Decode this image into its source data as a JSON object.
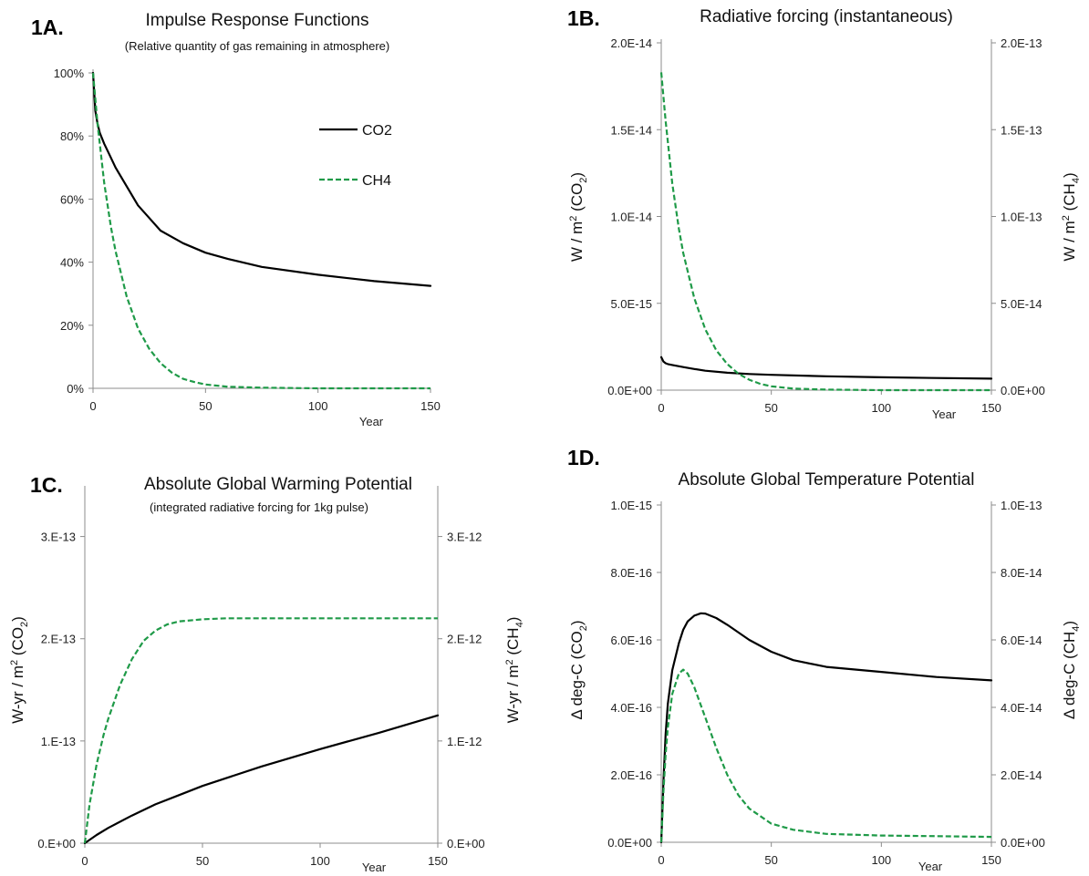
{
  "colors": {
    "co2": "#000000",
    "ch4": "#1f9a48",
    "axis": "#8c8c8c"
  },
  "chart_data": [
    {
      "id": "1A",
      "type": "line",
      "panel_label": "1A.",
      "title": "Impulse Response Functions",
      "subtitle": "(Relative quantity of gas remaining in atmosphere)",
      "xlabel": "Year",
      "xlim": [
        0,
        150
      ],
      "x_ticks": [
        0,
        50,
        100,
        150
      ],
      "y_left_lim": [
        0,
        100
      ],
      "y_left_ticks": [
        "0%",
        "20%",
        "40%",
        "60%",
        "80%",
        "100%"
      ],
      "legend": {
        "placement": "top-right",
        "entries": [
          "CO2",
          "CH4"
        ]
      },
      "series": [
        {
          "name": "CO2",
          "axis": "left",
          "style": "solid",
          "x": [
            0,
            1,
            2,
            3,
            5,
            7,
            10,
            15,
            20,
            25,
            30,
            40,
            50,
            60,
            75,
            100,
            125,
            150
          ],
          "y": [
            100,
            88,
            84,
            81,
            77.5,
            74.5,
            70,
            64,
            58,
            54,
            50,
            46,
            43,
            41,
            38.5,
            36,
            34,
            32.5
          ]
        },
        {
          "name": "CH4",
          "axis": "left",
          "style": "dashed",
          "x": [
            0,
            2,
            5,
            8,
            10,
            15,
            20,
            25,
            30,
            35,
            40,
            45,
            50,
            60,
            75,
            100,
            125,
            150
          ],
          "y": [
            100,
            84,
            65,
            51,
            43.5,
            29,
            19,
            12.5,
            8,
            5,
            3,
            2,
            1.2,
            0.5,
            0.2,
            0,
            0,
            0
          ]
        }
      ]
    },
    {
      "id": "1B",
      "type": "line",
      "panel_label": "1B.",
      "title": "Radiative forcing (instantaneous)",
      "xlabel": "Year",
      "xlim": [
        0,
        150
      ],
      "x_ticks": [
        0,
        50,
        100,
        150
      ],
      "y_left_lim": [
        0,
        2e-14
      ],
      "y_left_ticks": [
        "0.0E+00",
        "5.0E-15",
        "1.0E-14",
        "1.5E-14",
        "2.0E-14"
      ],
      "y_right_lim": [
        0,
        2e-13
      ],
      "y_right_ticks": [
        "0.0E+00",
        "5.0E-14",
        "1.0E-13",
        "1.5E-13",
        "2.0E-13"
      ],
      "ylabel_left": {
        "main": "W / m",
        "sup": "2",
        "paren": " (CO",
        "sub": "2",
        "close": ")"
      },
      "ylabel_right": {
        "main": "W / m",
        "sup": "2",
        "paren": " (CH",
        "sub": "4",
        "close": ")"
      },
      "series": [
        {
          "name": "CO2",
          "axis": "left",
          "style": "solid",
          "x": [
            0,
            1,
            2,
            3,
            5,
            10,
            15,
            20,
            30,
            40,
            50,
            75,
            100,
            125,
            150
          ],
          "y": [
            1.9e-15,
            1.65e-15,
            1.55e-15,
            1.5e-15,
            1.45e-15,
            1.33e-15,
            1.22e-15,
            1.12e-15,
            1e-15,
            9.3e-16,
            8.8e-16,
            8e-16,
            7.4e-16,
            7e-16,
            6.6e-16
          ]
        },
        {
          "name": "CH4",
          "axis": "right",
          "style": "dashed",
          "x": [
            0,
            2,
            5,
            8,
            10,
            15,
            20,
            25,
            30,
            35,
            40,
            45,
            50,
            60,
            75,
            100,
            125,
            150
          ],
          "y": [
            1.83e-13,
            1.55e-13,
            1.19e-13,
            9.3e-14,
            7.9e-14,
            5.3e-14,
            3.5e-14,
            2.3e-14,
            1.5e-14,
            9.5e-15,
            6e-15,
            3.6e-15,
            2.2e-15,
            9e-16,
            3e-16,
            0,
            0,
            0
          ]
        }
      ]
    },
    {
      "id": "1C",
      "type": "line",
      "panel_label": "1C.",
      "title": "Absolute Global Warming Potential",
      "subtitle": "(integrated radiative forcing for 1kg pulse)",
      "xlabel": "Year",
      "xlim": [
        0,
        150
      ],
      "x_ticks": [
        0,
        50,
        100,
        150
      ],
      "y_left_lim": [
        0,
        3.46e-13
      ],
      "y_left_ticks": [
        "0.E+00",
        "1.E-13",
        "2.E-13",
        "3.E-13"
      ],
      "y_right_lim": [
        0,
        3.46e-12
      ],
      "y_right_ticks": [
        "0.E+00",
        "1.E-12",
        "2.E-12",
        "3.E-12"
      ],
      "ylabel_left": {
        "main": "W-yr / m",
        "sup": "2",
        "paren": " (CO",
        "sub": "2",
        "close": ")"
      },
      "ylabel_right": {
        "main": "W-yr / m",
        "sup": "2",
        "paren": " (CH",
        "sub": "4",
        "close": ")"
      },
      "series": [
        {
          "name": "CO2",
          "axis": "left",
          "style": "solid",
          "x": [
            0,
            5,
            10,
            20,
            30,
            40,
            50,
            75,
            100,
            125,
            150
          ],
          "y": [
            0,
            8e-15,
            1.5e-14,
            2.7e-14,
            3.8e-14,
            4.7e-14,
            5.6e-14,
            7.5e-14,
            9.2e-14,
            1.08e-13,
            1.25e-13
          ]
        },
        {
          "name": "CH4",
          "axis": "right",
          "style": "dashed",
          "x": [
            0,
            2,
            5,
            8,
            10,
            15,
            20,
            25,
            30,
            35,
            40,
            50,
            60,
            75,
            100,
            150
          ],
          "y": [
            0,
            3.8e-13,
            7.7e-13,
            1.06e-12,
            1.22e-12,
            1.55e-12,
            1.8e-12,
            1.98e-12,
            2.08e-12,
            2.14e-12,
            2.17e-12,
            2.19e-12,
            2.2e-12,
            2.2e-12,
            2.2e-12,
            2.2e-12
          ]
        }
      ]
    },
    {
      "id": "1D",
      "type": "line",
      "panel_label": "1D.",
      "title": "Absolute Global Temperature Potential",
      "xlabel": "Year",
      "xlim": [
        0,
        150
      ],
      "x_ticks": [
        0,
        50,
        100,
        150
      ],
      "y_left_lim": [
        0,
        1e-15
      ],
      "y_left_ticks": [
        "0.0E+00",
        "2.0E-16",
        "4.0E-16",
        "6.0E-16",
        "8.0E-16",
        "1.0E-15"
      ],
      "y_right_lim": [
        0,
        1e-13
      ],
      "y_right_ticks": [
        "0.0E+00",
        "2.0E-14",
        "4.0E-14",
        "6.0E-14",
        "8.0E-14",
        "1.0E-13"
      ],
      "ylabel_left": {
        "main": "Δ deg-C",
        "sup": "",
        "paren": " (CO",
        "sub": "2",
        "close": ")"
      },
      "ylabel_right": {
        "main": "Δ deg-C",
        "sup": "",
        "paren": " (CH",
        "sub": "4",
        "close": ")"
      },
      "series": [
        {
          "name": "CO2",
          "axis": "left",
          "style": "solid",
          "x": [
            0,
            1,
            2,
            3,
            5,
            8,
            10,
            12,
            15,
            18,
            20,
            25,
            30,
            40,
            50,
            60,
            75,
            100,
            125,
            150
          ],
          "y": [
            0,
            1.8e-16,
            3.2e-16,
            4.1e-16,
            5.1e-16,
            5.9e-16,
            6.3e-16,
            6.55e-16,
            6.72e-16,
            6.79e-16,
            6.78e-16,
            6.65e-16,
            6.45e-16,
            6e-16,
            5.65e-16,
            5.4e-16,
            5.2e-16,
            5.05e-16,
            4.9e-16,
            4.8e-16
          ]
        },
        {
          "name": "CH4",
          "axis": "right",
          "style": "dashed",
          "x": [
            0,
            1,
            2,
            3,
            5,
            8,
            10,
            12,
            15,
            20,
            25,
            30,
            35,
            40,
            50,
            60,
            75,
            100,
            125,
            150
          ],
          "y": [
            0,
            1.5e-14,
            2.6e-14,
            3.4e-14,
            4.4e-14,
            5e-14,
            5.12e-14,
            5e-14,
            4.6e-14,
            3.7e-14,
            2.8e-14,
            2e-14,
            1.4e-14,
            1e-14,
            5.5e-15,
            3.7e-15,
            2.5e-15,
            2e-15,
            1.8e-15,
            1.6e-15
          ]
        }
      ]
    }
  ]
}
